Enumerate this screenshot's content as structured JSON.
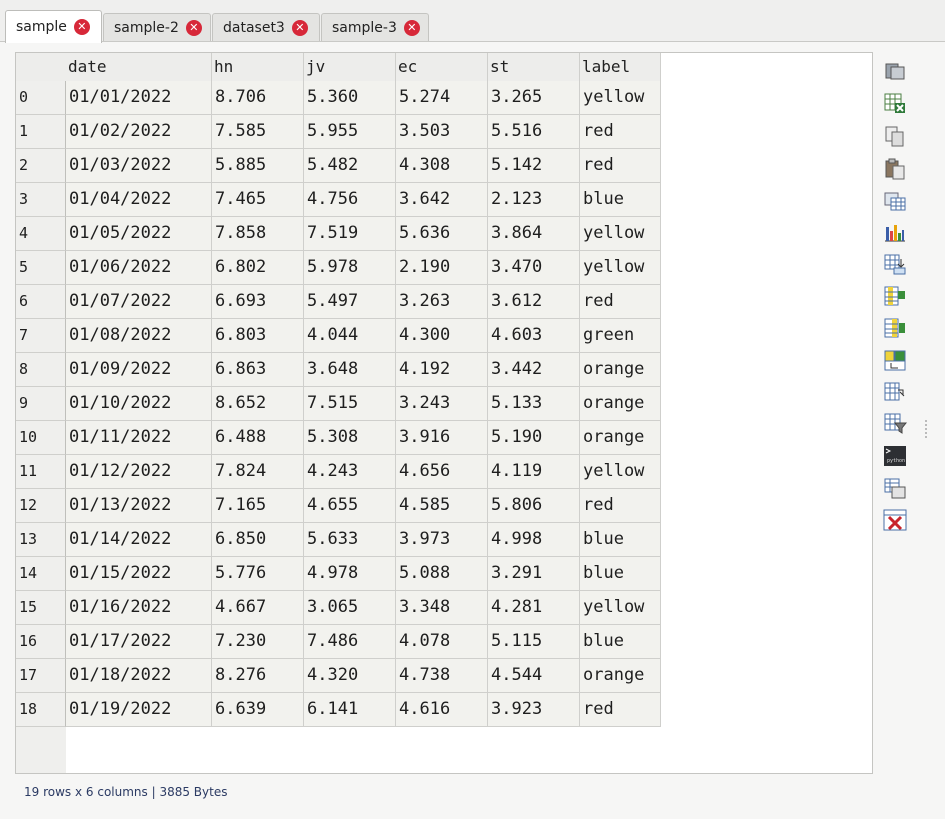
{
  "tabs": [
    {
      "label": "sample",
      "active": true
    },
    {
      "label": "sample-2",
      "active": false
    },
    {
      "label": "dataset3",
      "active": false
    },
    {
      "label": "sample-3",
      "active": false
    }
  ],
  "close_glyph": "✕",
  "table": {
    "columns": [
      "date",
      "hn",
      "jv",
      "ec",
      "st",
      "label"
    ],
    "rows": [
      [
        "0",
        "01/01/2022",
        "8.706",
        "5.360",
        "5.274",
        "3.265",
        "yellow"
      ],
      [
        "1",
        "01/02/2022",
        "7.585",
        "5.955",
        "3.503",
        "5.516",
        "red"
      ],
      [
        "2",
        "01/03/2022",
        "5.885",
        "5.482",
        "4.308",
        "5.142",
        "red"
      ],
      [
        "3",
        "01/04/2022",
        "7.465",
        "4.756",
        "3.642",
        "2.123",
        "blue"
      ],
      [
        "4",
        "01/05/2022",
        "7.858",
        "7.519",
        "5.636",
        "3.864",
        "yellow"
      ],
      [
        "5",
        "01/06/2022",
        "6.802",
        "5.978",
        "2.190",
        "3.470",
        "yellow"
      ],
      [
        "6",
        "01/07/2022",
        "6.693",
        "5.497",
        "3.263",
        "3.612",
        "red"
      ],
      [
        "7",
        "01/08/2022",
        "6.803",
        "4.044",
        "4.300",
        "4.603",
        "green"
      ],
      [
        "8",
        "01/09/2022",
        "6.863",
        "3.648",
        "4.192",
        "3.442",
        "orange"
      ],
      [
        "9",
        "01/10/2022",
        "8.652",
        "7.515",
        "3.243",
        "5.133",
        "orange"
      ],
      [
        "10",
        "01/11/2022",
        "6.488",
        "5.308",
        "3.916",
        "5.190",
        "orange"
      ],
      [
        "11",
        "01/12/2022",
        "7.824",
        "4.243",
        "4.656",
        "4.119",
        "yellow"
      ],
      [
        "12",
        "01/13/2022",
        "7.165",
        "4.655",
        "4.585",
        "5.806",
        "red"
      ],
      [
        "13",
        "01/14/2022",
        "6.850",
        "5.633",
        "3.973",
        "4.998",
        "blue"
      ],
      [
        "14",
        "01/15/2022",
        "5.776",
        "4.978",
        "5.088",
        "3.291",
        "blue"
      ],
      [
        "15",
        "01/16/2022",
        "4.667",
        "3.065",
        "3.348",
        "4.281",
        "yellow"
      ],
      [
        "16",
        "01/17/2022",
        "7.230",
        "7.486",
        "4.078",
        "5.115",
        "blue"
      ],
      [
        "17",
        "01/18/2022",
        "8.276",
        "4.320",
        "4.738",
        "4.544",
        "orange"
      ],
      [
        "18",
        "01/19/2022",
        "6.639",
        "6.141",
        "4.616",
        "3.923",
        "red"
      ]
    ]
  },
  "status": "19 rows x 6 columns | 3885 Bytes",
  "toolbar": [
    "open-folder-icon",
    "export-excel-icon",
    "copy-icon",
    "paste-icon",
    "table-view-icon",
    "bar-chart-icon",
    "transpose-icon",
    "add-column-icon",
    "insert-column-icon",
    "merge-table-icon",
    "export-table-icon",
    "filter-icon",
    "python-console-icon",
    "duplicate-table-icon",
    "delete-table-icon"
  ],
  "python_label": "python",
  "colors": {
    "close": "#d72839",
    "status_text": "#2b3a63",
    "cell_bg": "#f2f2ee"
  }
}
